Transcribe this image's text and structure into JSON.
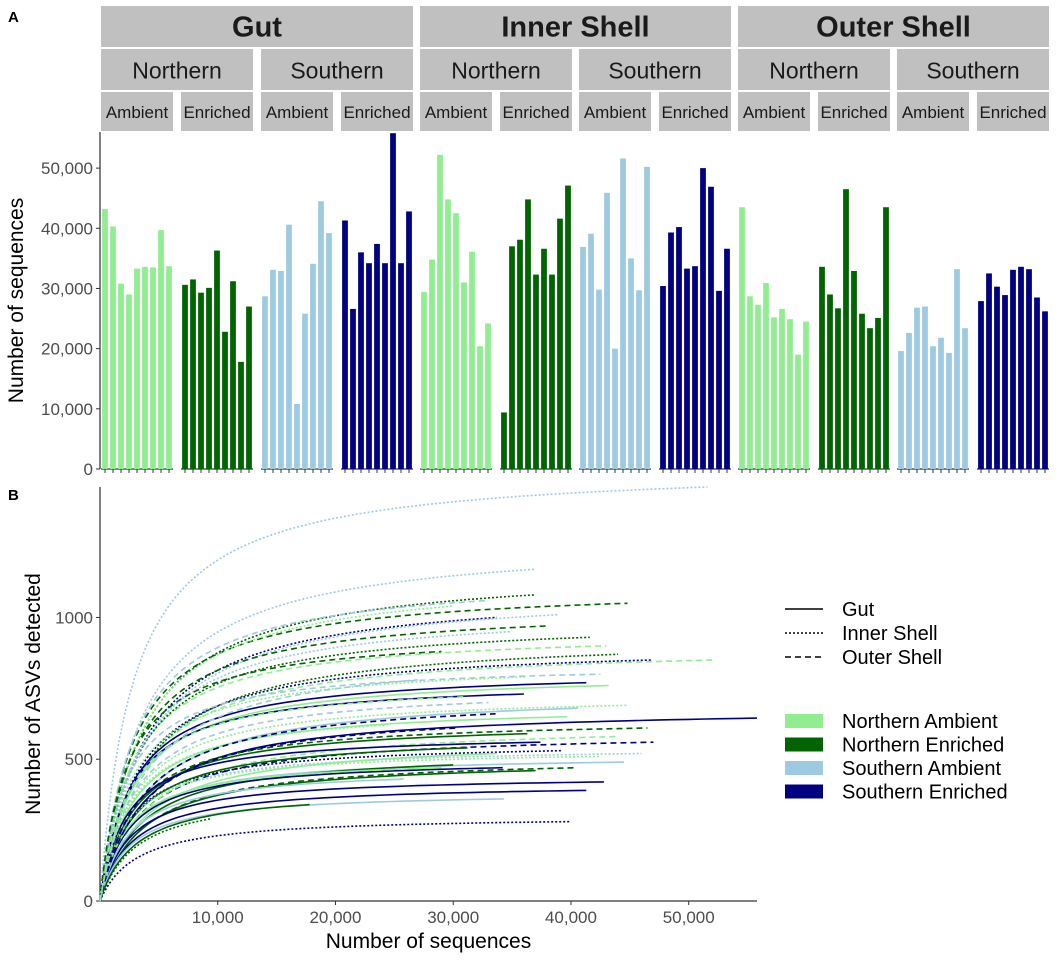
{
  "panel_labels": [
    "A",
    "B"
  ],
  "colors": {
    "Northern Ambient": "#90ee90",
    "Northern Enriched": "#006400",
    "Southern Ambient": "#9ecae1",
    "Southern Enriched": "#000080",
    "strip": "#c0c0c0"
  },
  "chart_data": [
    {
      "type": "bar",
      "panel": "A",
      "ylabel": "Number of sequences",
      "xlabel": "",
      "ylim": [
        0,
        56000
      ],
      "yticks": [
        0,
        10000,
        20000,
        30000,
        40000,
        50000
      ],
      "ytick_labels": [
        "0",
        "10,000",
        "20,000",
        "30,000",
        "40,000",
        "50,000"
      ],
      "facet_rows": {
        "level1": [
          "Gut",
          "Inner Shell",
          "Outer Shell"
        ],
        "level2": [
          "Northern",
          "Southern"
        ],
        "level3": [
          "Ambient",
          "Enriched"
        ]
      },
      "facets": [
        {
          "sample_type": "Gut",
          "region": "Northern",
          "treatment": "Ambient",
          "group": "Northern Ambient",
          "values": [
            43200,
            40300,
            30800,
            29000,
            33300,
            33600,
            33500,
            39700,
            33700
          ]
        },
        {
          "sample_type": "Gut",
          "region": "Northern",
          "treatment": "Enriched",
          "group": "Northern Enriched",
          "values": [
            30600,
            31500,
            29300,
            30100,
            36300,
            22800,
            31200,
            17800,
            27000
          ]
        },
        {
          "sample_type": "Gut",
          "region": "Southern",
          "treatment": "Ambient",
          "group": "Southern Ambient",
          "values": [
            28700,
            33100,
            32900,
            40600,
            10800,
            25800,
            34100,
            44500,
            39200
          ]
        },
        {
          "sample_type": "Gut",
          "region": "Southern",
          "treatment": "Enriched",
          "group": "Southern Enriched",
          "values": [
            41300,
            26600,
            36000,
            34200,
            37400,
            34200,
            55800,
            34200,
            42800
          ]
        },
        {
          "sample_type": "Inner Shell",
          "region": "Northern",
          "treatment": "Ambient",
          "group": "Northern Ambient",
          "values": [
            29400,
            34800,
            52200,
            44800,
            42500,
            31000,
            36100,
            20400,
            24200
          ]
        },
        {
          "sample_type": "Inner Shell",
          "region": "Northern",
          "treatment": "Enriched",
          "group": "Northern Enriched",
          "values": [
            9400,
            37000,
            38100,
            44800,
            32300,
            36600,
            32300,
            41600,
            47100
          ]
        },
        {
          "sample_type": "Inner Shell",
          "region": "Southern",
          "treatment": "Ambient",
          "group": "Southern Ambient",
          "values": [
            36900,
            39100,
            29800,
            45900,
            20000,
            51600,
            35000,
            29700,
            50200
          ]
        },
        {
          "sample_type": "Inner Shell",
          "region": "Southern",
          "treatment": "Enriched",
          "group": "Southern Enriched",
          "values": [
            30400,
            39300,
            40200,
            33300,
            33700,
            50000,
            46900,
            29600,
            36600
          ]
        },
        {
          "sample_type": "Outer Shell",
          "region": "Northern",
          "treatment": "Ambient",
          "group": "Northern Ambient",
          "values": [
            43500,
            28700,
            27300,
            30900,
            25200,
            26600,
            24900,
            19000,
            24500
          ]
        },
        {
          "sample_type": "Outer Shell",
          "region": "Northern",
          "treatment": "Enriched",
          "group": "Northern Enriched",
          "values": [
            33600,
            29000,
            26700,
            46500,
            32900,
            25800,
            23400,
            25100,
            43500
          ]
        },
        {
          "sample_type": "Outer Shell",
          "region": "Southern",
          "treatment": "Ambient",
          "group": "Southern Ambient",
          "values": [
            19600,
            22600,
            26800,
            27000,
            20400,
            21800,
            19300,
            33200,
            23400
          ]
        },
        {
          "sample_type": "Outer Shell",
          "region": "Southern",
          "treatment": "Enriched",
          "group": "Southern Enriched",
          "values": [
            27900,
            32500,
            30300,
            28900,
            33100,
            33600,
            33200,
            28500,
            26200
          ]
        }
      ]
    },
    {
      "type": "line",
      "panel": "B",
      "subtype": "rarefaction",
      "xlabel": "Number of sequences",
      "ylabel": "Number of ASVs detected",
      "xlim": [
        0,
        55800
      ],
      "ylim": [
        0,
        1460
      ],
      "xticks": [
        10000,
        20000,
        30000,
        40000,
        50000
      ],
      "xtick_labels": [
        "10,000",
        "20,000",
        "30,000",
        "40,000",
        "50,000"
      ],
      "yticks": [
        0,
        500,
        1000
      ],
      "ytick_labels": [
        "0",
        "500",
        "1000"
      ],
      "legend": {
        "placement": "right",
        "linetypes": [
          {
            "label": "Gut",
            "dash": "solid"
          },
          {
            "label": "Inner Shell",
            "dash": "dotted"
          },
          {
            "label": "Outer Shell",
            "dash": "dashed"
          }
        ],
        "fills": [
          {
            "label": "Northern Ambient"
          },
          {
            "label": "Northern Enriched"
          },
          {
            "label": "Southern Ambient"
          },
          {
            "label": "Southern Enriched"
          }
        ]
      },
      "curves": [
        {
          "group": "Southern Ambient",
          "sample_type": "Inner Shell",
          "max_seq": 51600,
          "max_asv": 1460
        },
        {
          "group": "Southern Ambient",
          "sample_type": "Inner Shell",
          "max_seq": 37000,
          "max_asv": 1170
        },
        {
          "group": "Northern Enriched",
          "sample_type": "Outer Shell",
          "max_seq": 44800,
          "max_asv": 1050
        },
        {
          "group": "Northern Enriched",
          "sample_type": "Inner Shell",
          "max_seq": 37000,
          "max_asv": 1080
        },
        {
          "group": "Southern Ambient",
          "sample_type": "Outer Shell",
          "max_seq": 33000,
          "max_asv": 1060
        },
        {
          "group": "Northern Ambient",
          "sample_type": "Inner Shell",
          "max_seq": 30000,
          "max_asv": 1040
        },
        {
          "group": "Southern Enriched",
          "sample_type": "Inner Shell",
          "max_seq": 33700,
          "max_asv": 1000
        },
        {
          "group": "Southern Ambient",
          "sample_type": "Inner Shell",
          "max_seq": 39000,
          "max_asv": 1010
        },
        {
          "group": "Northern Enriched",
          "sample_type": "Outer Shell",
          "max_seq": 38000,
          "max_asv": 970
        },
        {
          "group": "Northern Ambient",
          "sample_type": "Outer Shell",
          "max_seq": 43000,
          "max_asv": 900
        },
        {
          "group": "Southern Enriched",
          "sample_type": "Inner Shell",
          "max_seq": 46900,
          "max_asv": 850
        },
        {
          "group": "Northern Ambient",
          "sample_type": "Outer Shell",
          "max_seq": 52200,
          "max_asv": 850
        },
        {
          "group": "Northern Enriched",
          "sample_type": "Inner Shell",
          "max_seq": 44000,
          "max_asv": 870
        },
        {
          "group": "Southern Ambient",
          "sample_type": "Outer Shell",
          "max_seq": 42500,
          "max_asv": 800
        },
        {
          "group": "Northern Ambient",
          "sample_type": "Gut",
          "max_seq": 43200,
          "max_asv": 760
        },
        {
          "group": "Southern Enriched",
          "sample_type": "Gut",
          "max_seq": 41300,
          "max_asv": 770
        },
        {
          "group": "Southern Enriched",
          "sample_type": "Gut",
          "max_seq": 36000,
          "max_asv": 730
        },
        {
          "group": "Northern Ambient",
          "sample_type": "Inner Shell",
          "max_seq": 36100,
          "max_asv": 790
        },
        {
          "group": "Southern Ambient",
          "sample_type": "Gut",
          "max_seq": 40600,
          "max_asv": 680
        },
        {
          "group": "Southern Enriched",
          "sample_type": "Gut",
          "max_seq": 55800,
          "max_asv": 645
        },
        {
          "group": "Northern Ambient",
          "sample_type": "Gut",
          "max_seq": 39700,
          "max_asv": 650
        },
        {
          "group": "Southern Ambient",
          "sample_type": "Outer Shell",
          "max_seq": 33000,
          "max_asv": 700
        },
        {
          "group": "Northern Enriched",
          "sample_type": "Outer Shell",
          "max_seq": 46500,
          "max_asv": 610
        },
        {
          "group": "Southern Enriched",
          "sample_type": "Outer Shell",
          "max_seq": 47000,
          "max_asv": 560
        },
        {
          "group": "Northern Ambient",
          "sample_type": "Outer Shell",
          "max_seq": 44000,
          "max_asv": 580
        },
        {
          "group": "Southern Ambient",
          "sample_type": "Inner Shell",
          "max_seq": 46000,
          "max_asv": 520
        },
        {
          "group": "Northern Enriched",
          "sample_type": "Gut",
          "max_seq": 36300,
          "max_asv": 590
        },
        {
          "group": "Southern Enriched",
          "sample_type": "Gut",
          "max_seq": 37400,
          "max_asv": 560
        },
        {
          "group": "Southern Enriched",
          "sample_type": "Inner Shell",
          "max_seq": 39300,
          "max_asv": 530
        },
        {
          "group": "Northern Enriched",
          "sample_type": "Gut",
          "max_seq": 31200,
          "max_asv": 540
        },
        {
          "group": "Northern Ambient",
          "sample_type": "Gut",
          "max_seq": 33700,
          "max_asv": 520
        },
        {
          "group": "Northern Ambient",
          "sample_type": "Inner Shell",
          "max_seq": 42500,
          "max_asv": 510
        },
        {
          "group": "Southern Ambient",
          "sample_type": "Gut",
          "max_seq": 44500,
          "max_asv": 490
        },
        {
          "group": "Northern Enriched",
          "sample_type": "Outer Shell",
          "max_seq": 40500,
          "max_asv": 470
        },
        {
          "group": "Northern Enriched",
          "sample_type": "Gut",
          "max_seq": 30000,
          "max_asv": 480
        },
        {
          "group": "Southern Enriched",
          "sample_type": "Gut",
          "max_seq": 34200,
          "max_asv": 470
        },
        {
          "group": "Northern Enriched",
          "sample_type": "Gut",
          "max_seq": 37000,
          "max_asv": 460
        },
        {
          "group": "Southern Enriched",
          "sample_type": "Gut",
          "max_seq": 42800,
          "max_asv": 420
        },
        {
          "group": "Southern Enriched",
          "sample_type": "Gut",
          "max_seq": 41300,
          "max_asv": 390
        },
        {
          "group": "Southern Ambient",
          "sample_type": "Gut",
          "max_seq": 34300,
          "max_asv": 360
        },
        {
          "group": "Northern Enriched",
          "sample_type": "Gut",
          "max_seq": 17800,
          "max_asv": 340
        },
        {
          "group": "Southern Enriched",
          "sample_type": "Inner Shell",
          "max_seq": 40000,
          "max_asv": 280
        },
        {
          "group": "Northern Enriched",
          "sample_type": "Inner Shell",
          "max_seq": 9400,
          "max_asv": 290
        },
        {
          "group": "Northern Ambient",
          "sample_type": "Gut",
          "max_seq": 29000,
          "max_asv": 470
        },
        {
          "group": "Southern Ambient",
          "sample_type": "Gut",
          "max_seq": 25800,
          "max_asv": 430
        },
        {
          "group": "Northern Ambient",
          "sample_type": "Inner Shell",
          "max_seq": 24200,
          "max_asv": 620
        },
        {
          "group": "Southern Enriched",
          "sample_type": "Outer Shell",
          "max_seq": 33600,
          "max_asv": 660
        },
        {
          "group": "Northern Enriched",
          "sample_type": "Inner Shell",
          "max_seq": 41600,
          "max_asv": 930
        },
        {
          "group": "Southern Ambient",
          "sample_type": "Inner Shell",
          "max_seq": 35000,
          "max_asv": 950
        },
        {
          "group": "Northern Ambient",
          "sample_type": "Outer Shell",
          "max_seq": 30900,
          "max_asv": 720
        },
        {
          "group": "Southern Enriched",
          "sample_type": "Outer Shell",
          "max_seq": 30300,
          "max_asv": 610
        },
        {
          "group": "Northern Enriched",
          "sample_type": "Outer Shell",
          "max_seq": 29000,
          "max_asv": 880
        },
        {
          "group": "Southern Ambient",
          "sample_type": "Outer Shell",
          "max_seq": 27000,
          "max_asv": 780
        },
        {
          "group": "Northern Ambient",
          "sample_type": "Inner Shell",
          "max_seq": 44800,
          "max_asv": 690
        }
      ]
    }
  ]
}
